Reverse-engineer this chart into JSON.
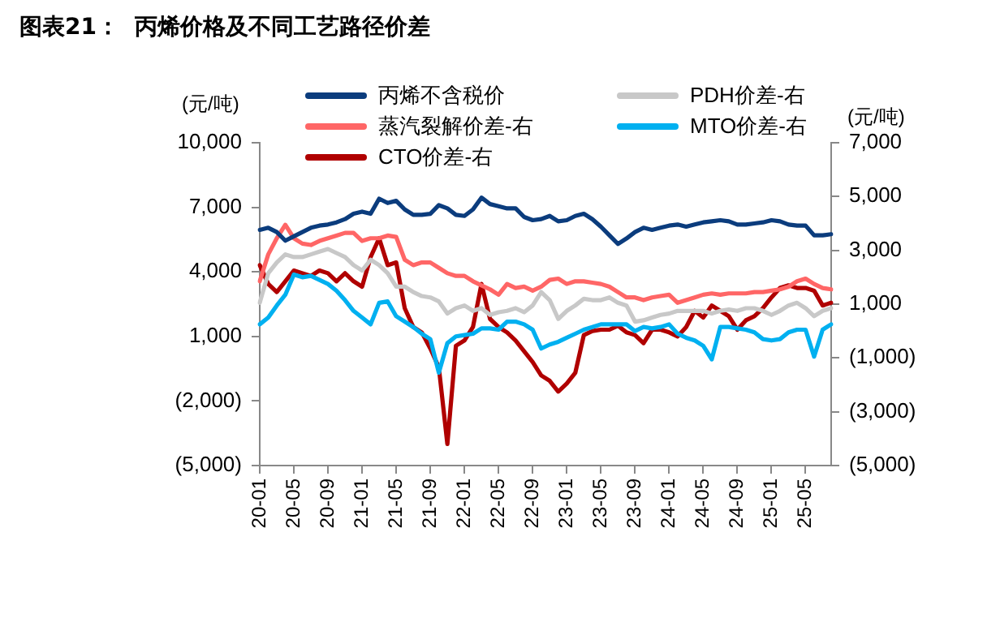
{
  "chart_data": {
    "type": "line",
    "title": "图表21：  丙烯价格及不同工艺路径价差",
    "ylabel": "(元/吨)",
    "y2label": "(元/吨)",
    "categories": [
      "20-01",
      null,
      null,
      null,
      "20-05",
      null,
      null,
      null,
      "20-09",
      null,
      null,
      null,
      "21-01",
      null,
      null,
      null,
      "21-05",
      null,
      null,
      null,
      "21-09",
      null,
      null,
      null,
      "22-01",
      null,
      null,
      null,
      "22-05",
      null,
      null,
      null,
      "22-09",
      null,
      null,
      null,
      "23-01",
      null,
      null,
      null,
      "23-05",
      null,
      null,
      null,
      "23-09",
      null,
      null,
      null,
      "24-01",
      null,
      null,
      null,
      "24-05",
      null,
      null,
      null,
      "24-09",
      null,
      null,
      null,
      "25-01",
      null,
      null,
      null,
      "25-05",
      null,
      null,
      null
    ],
    "series": [
      {
        "name": "丙烯不含税价",
        "color": "#0b3c7d",
        "values": [
          5950,
          6050,
          5850,
          5450,
          5650,
          5850,
          6050,
          6150,
          6200,
          6300,
          6450,
          6700,
          6800,
          6700,
          7400,
          7200,
          7300,
          6900,
          6650,
          6650,
          6700,
          7100,
          6950,
          6650,
          6600,
          6900,
          7450,
          7150,
          7050,
          6950,
          6950,
          6550,
          6400,
          6450,
          6600,
          6350,
          6400,
          6600,
          6700,
          6450,
          6100,
          5700,
          5300,
          5550,
          5850,
          6050,
          5950,
          6050,
          6150,
          6200,
          6100,
          6200,
          6300,
          6350,
          6400,
          6350,
          6200,
          6200,
          6250,
          6300,
          6400,
          6350,
          6200,
          6150,
          6150,
          5700,
          5700,
          5750
        ]
      },
      {
        "name": "PDH价差-右",
        "color": "#c8c8c8",
        "axis": "y2",
        "values": [
          1050,
          2150,
          2550,
          2850,
          2750,
          2750,
          2850,
          2950,
          3050,
          2900,
          2750,
          2450,
          2250,
          2650,
          2450,
          2150,
          1650,
          1650,
          1450,
          1300,
          1250,
          1100,
          650,
          850,
          950,
          750,
          850,
          600,
          700,
          750,
          850,
          700,
          950,
          1450,
          1150,
          450,
          750,
          950,
          1200,
          1150,
          1150,
          1250,
          1050,
          950,
          350,
          400,
          500,
          600,
          650,
          750,
          750,
          750,
          750,
          650,
          750,
          800,
          750,
          850,
          850,
          750,
          600,
          750,
          950,
          1050,
          850,
          550,
          750,
          850
        ]
      },
      {
        "name": "蒸汽裂解价差-右",
        "color": "#ff6666",
        "axis": "y2",
        "values": [
          1850,
          2850,
          3450,
          3950,
          3450,
          3250,
          3200,
          3350,
          3450,
          3550,
          3650,
          3650,
          3350,
          3450,
          3450,
          3550,
          3500,
          2650,
          2450,
          2550,
          2550,
          2350,
          2150,
          2050,
          2050,
          1850,
          1700,
          1550,
          1350,
          1750,
          1600,
          1650,
          1500,
          1650,
          1900,
          1950,
          1750,
          1850,
          1850,
          1800,
          1750,
          1650,
          1450,
          1250,
          1250,
          1150,
          1250,
          1300,
          1350,
          1050,
          1150,
          1250,
          1350,
          1400,
          1350,
          1400,
          1400,
          1400,
          1450,
          1450,
          1500,
          1550,
          1650,
          1850,
          1950,
          1750,
          1600,
          1550
        ]
      },
      {
        "name": "MTO价差-右",
        "color": "#00b0f0",
        "axis": "y2",
        "values": [
          250,
          500,
          950,
          1350,
          2100,
          2000,
          2050,
          1900,
          1750,
          1500,
          1150,
          750,
          500,
          250,
          1050,
          1100,
          550,
          350,
          150,
          -100,
          -300,
          -1550,
          -450,
          -200,
          -150,
          -100,
          100,
          100,
          50,
          350,
          350,
          250,
          50,
          -650,
          -500,
          -400,
          -250,
          -100,
          50,
          150,
          250,
          250,
          250,
          250,
          0,
          150,
          100,
          150,
          250,
          -100,
          -250,
          -350,
          -550,
          -1050,
          150,
          150,
          100,
          50,
          -50,
          -300,
          -350,
          -300,
          -50,
          50,
          50,
          -950,
          50,
          250
        ]
      },
      {
        "name": "CTO价差-右",
        "color": "#b00000",
        "axis": "y2",
        "values": [
          2450,
          1750,
          1450,
          1850,
          2250,
          2150,
          2050,
          2250,
          2150,
          1850,
          2150,
          1850,
          1650,
          2750,
          3450,
          2450,
          2550,
          850,
          150,
          -50,
          -650,
          -1350,
          -4200,
          -550,
          -350,
          150,
          1750,
          450,
          150,
          -50,
          -350,
          -750,
          -1150,
          -1650,
          -1850,
          -2250,
          -1950,
          -1550,
          -150,
          0,
          50,
          50,
          200,
          -50,
          -150,
          -450,
          50,
          50,
          -50,
          -200,
          150,
          750,
          500,
          950,
          750,
          550,
          50,
          400,
          550,
          850,
          1250,
          1600,
          1700,
          1600,
          1600,
          1500,
          950,
          1050
        ]
      }
    ],
    "ylim": [
      -5000,
      10000
    ],
    "yticks": [
      {
        "value": -5000,
        "label": "(5,000)"
      },
      {
        "value": -2000,
        "label": "(2,000)"
      },
      {
        "value": 1000,
        "label": "1,000"
      },
      {
        "value": 4000,
        "label": "4,000"
      },
      {
        "value": 7000,
        "label": "7,000"
      },
      {
        "value": 10000,
        "label": "10,000"
      }
    ],
    "y2lim": [
      -5000,
      7000
    ],
    "y2ticks": [
      {
        "value": -5000,
        "label": "(5,000)"
      },
      {
        "value": -3000,
        "label": "(3,000)"
      },
      {
        "value": -1000,
        "label": "(1,000)"
      },
      {
        "value": 1000,
        "label": "1,000"
      },
      {
        "value": 3000,
        "label": "3,000"
      },
      {
        "value": 5000,
        "label": "5,000"
      },
      {
        "value": 7000,
        "label": "7,000"
      }
    ],
    "legend": "top",
    "grid": false,
    "marker": "none",
    "line_style": "solid"
  }
}
